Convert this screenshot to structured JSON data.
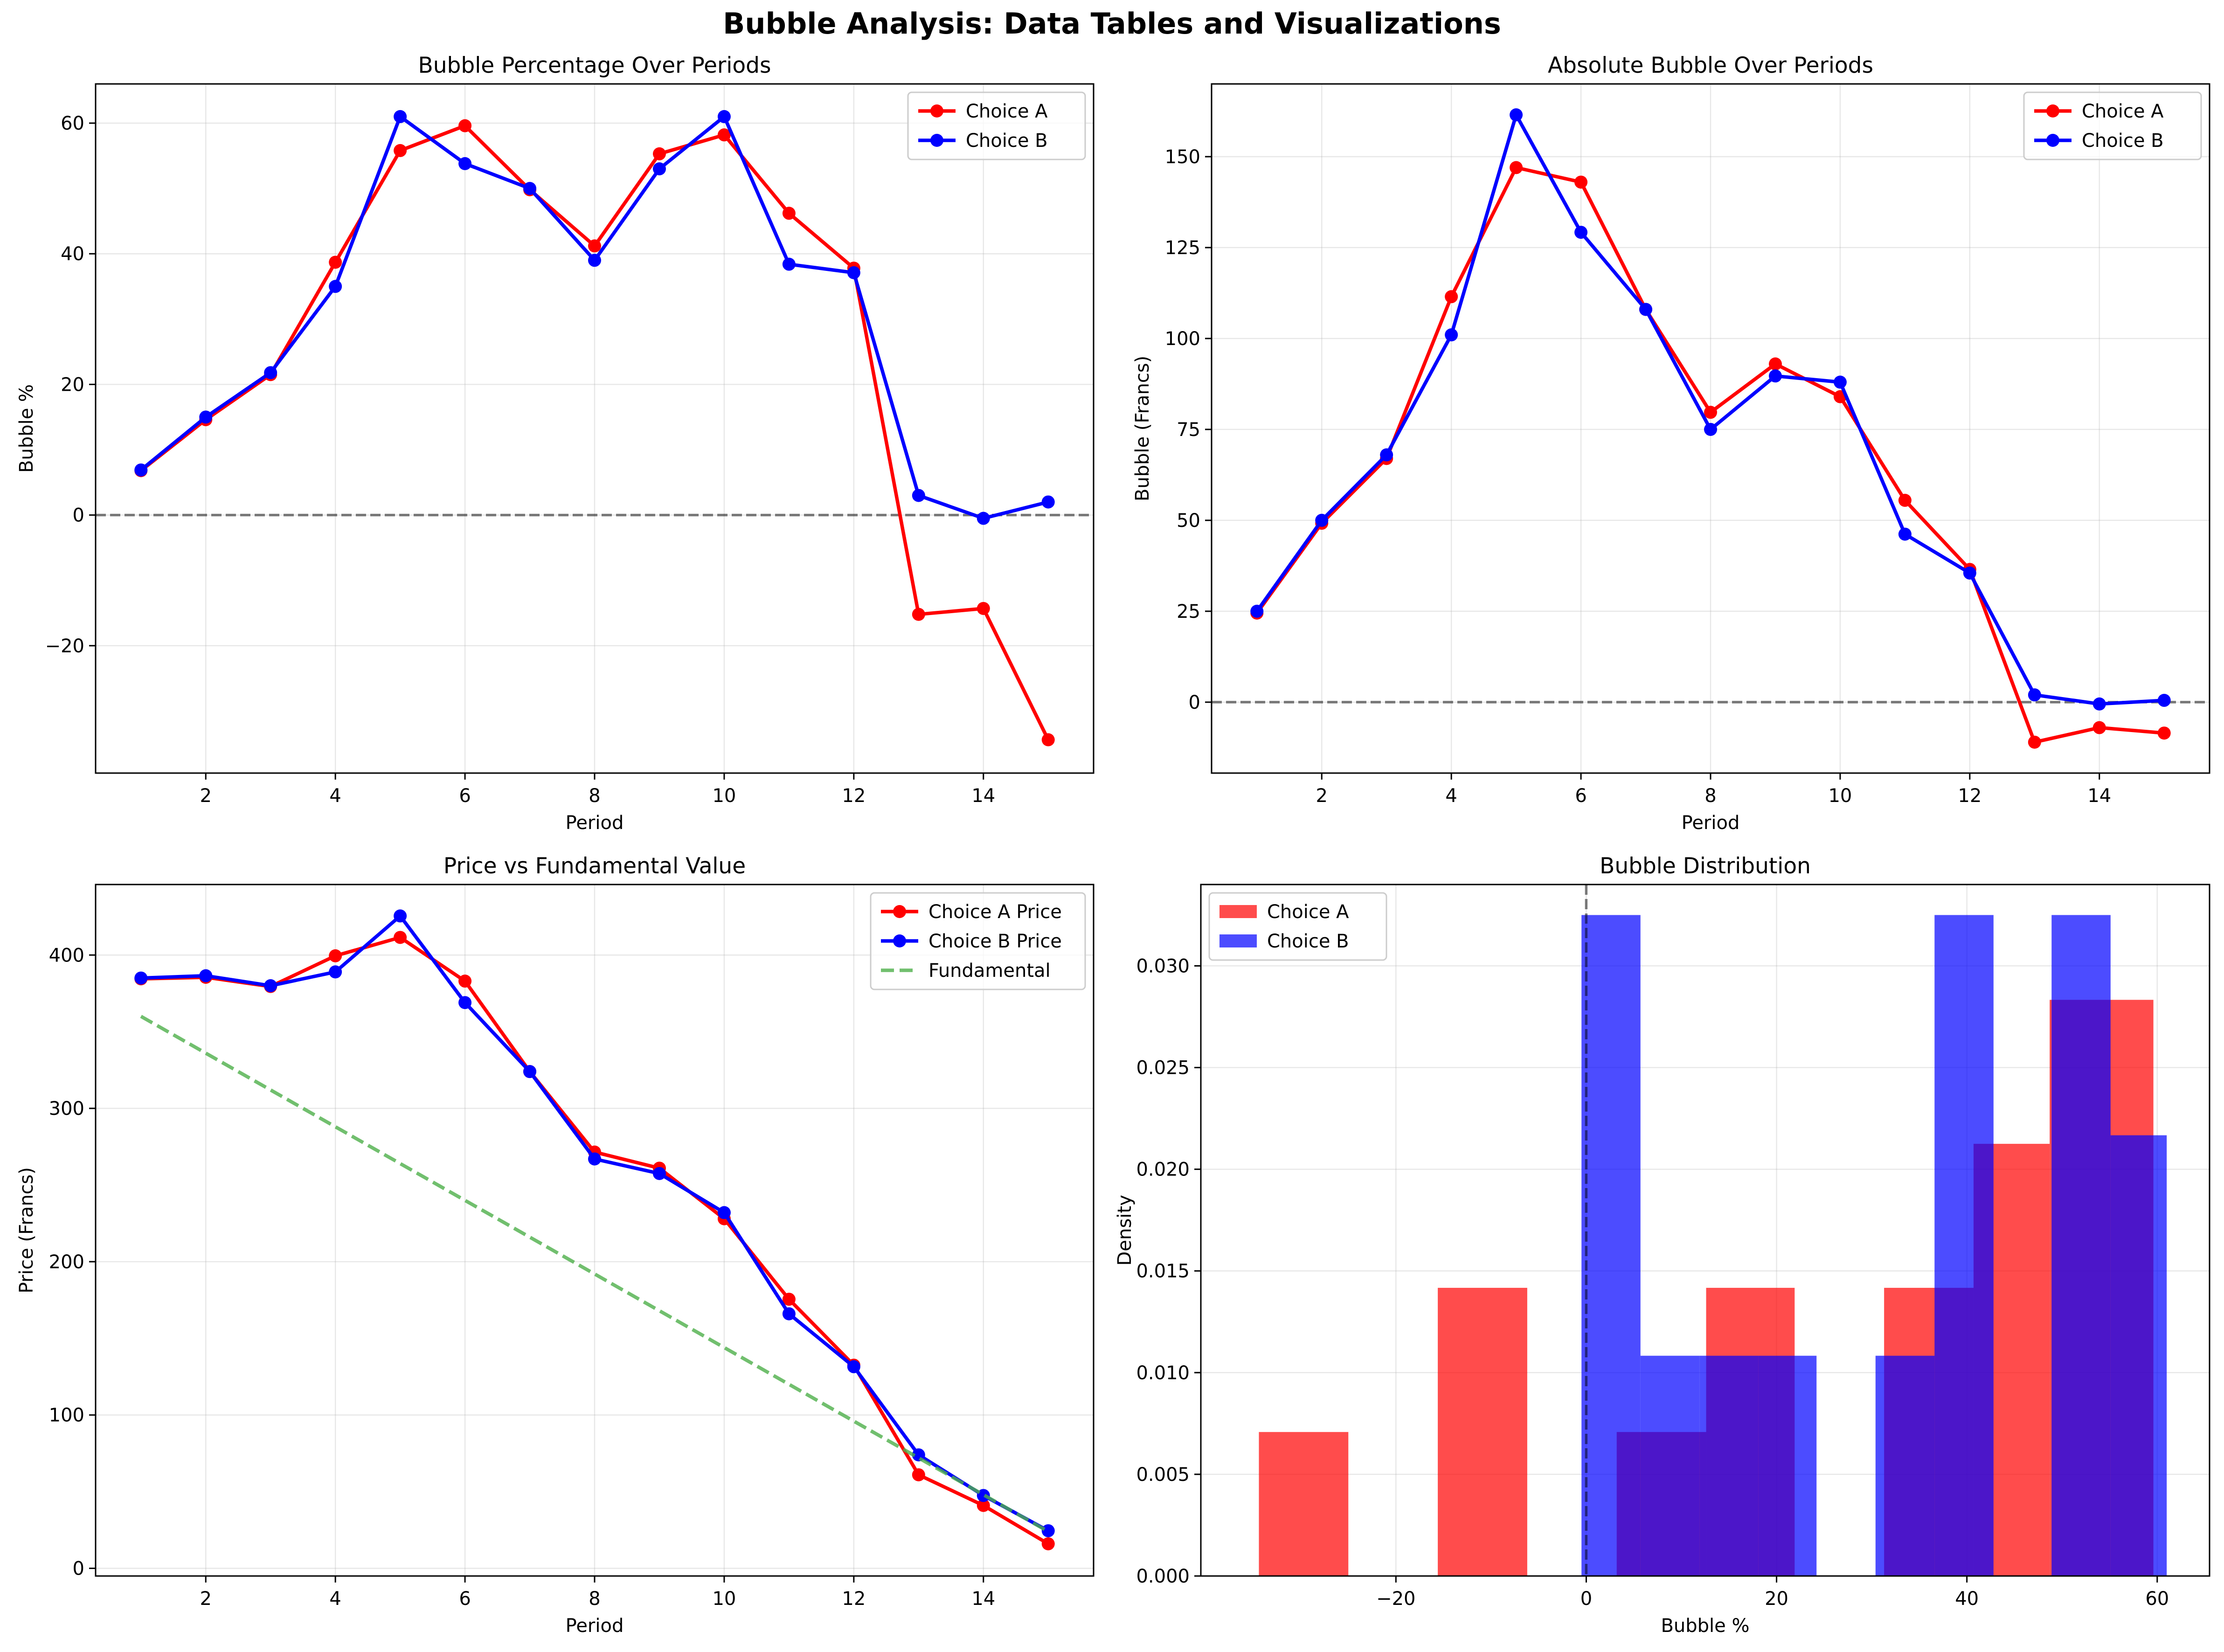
{
  "figure": {
    "title": "Bubble Analysis: Data Tables and Visualizations"
  },
  "chart_data": [
    {
      "type": "line",
      "title": "Bubble Percentage Over Periods",
      "xlabel": "Period",
      "ylabel": "Bubble %",
      "x": [
        1,
        2,
        3,
        4,
        5,
        6,
        7,
        8,
        9,
        10,
        11,
        12,
        13,
        14,
        15
      ],
      "xlim": [
        0.3,
        15.7
      ],
      "ylim": [
        -39.5,
        66
      ],
      "xticks": [
        2,
        4,
        6,
        8,
        10,
        12,
        14
      ],
      "yticks": [
        -20,
        0,
        20,
        40,
        60
      ],
      "hline": 0,
      "grid": true,
      "legend": "top-right",
      "series": [
        {
          "name": "Choice A",
          "color": "#ff0000",
          "style": "solid",
          "marker": true,
          "values": [
            6.8,
            14.6,
            21.5,
            38.7,
            55.8,
            59.6,
            49.8,
            41.2,
            55.3,
            58.2,
            46.2,
            37.8,
            -15.2,
            -14.3,
            -34.4
          ]
        },
        {
          "name": "Choice B",
          "color": "#0000ff",
          "style": "solid",
          "marker": true,
          "values": [
            6.9,
            15.0,
            21.8,
            35.0,
            61.0,
            53.8,
            50.0,
            39.0,
            53.0,
            61.0,
            38.4,
            37.1,
            3.0,
            -0.5,
            2.0
          ]
        }
      ]
    },
    {
      "type": "line",
      "title": "Absolute Bubble Over Periods",
      "xlabel": "Period",
      "ylabel": "Bubble (Francs)",
      "x": [
        1,
        2,
        3,
        4,
        5,
        6,
        7,
        8,
        9,
        10,
        11,
        12,
        13,
        14,
        15
      ],
      "xlim": [
        0.3,
        15.7
      ],
      "ylim": [
        -19.5,
        170
      ],
      "xticks": [
        2,
        4,
        6,
        8,
        10,
        12,
        14
      ],
      "yticks": [
        0,
        25,
        50,
        75,
        100,
        125,
        150
      ],
      "hline": 0,
      "grid": true,
      "legend": "top-right",
      "series": [
        {
          "name": "Choice A",
          "color": "#ff0000",
          "style": "solid",
          "marker": true,
          "values": [
            24.5,
            49.2,
            67.0,
            111.5,
            147.0,
            143.0,
            108.0,
            79.7,
            93.0,
            84.0,
            55.5,
            36.5,
            -11.0,
            -7.0,
            -8.5
          ]
        },
        {
          "name": "Choice B",
          "color": "#0000ff",
          "style": "solid",
          "marker": true,
          "values": [
            25.0,
            50.0,
            68.0,
            101.0,
            161.5,
            129.2,
            108.0,
            75.0,
            89.7,
            88.0,
            46.2,
            35.5,
            2.0,
            -0.5,
            0.5
          ]
        }
      ]
    },
    {
      "type": "line",
      "title": "Price vs Fundamental Value",
      "xlabel": "Period",
      "ylabel": "Price (Francs)",
      "x": [
        1,
        2,
        3,
        4,
        5,
        6,
        7,
        8,
        9,
        10,
        11,
        12,
        13,
        14,
        15
      ],
      "xlim": [
        0.3,
        15.7
      ],
      "ylim": [
        -5,
        446
      ],
      "xticks": [
        2,
        4,
        6,
        8,
        10,
        12,
        14
      ],
      "yticks": [
        0,
        100,
        200,
        300,
        400
      ],
      "grid": true,
      "legend": "top-right",
      "series": [
        {
          "name": "Choice A Price",
          "color": "#ff0000",
          "style": "solid",
          "marker": true,
          "values": [
            384.5,
            385.5,
            379.5,
            399.5,
            411.5,
            383.0,
            324.0,
            271.5,
            261.0,
            228.0,
            175.5,
            132.5,
            61.0,
            41.0,
            16.0
          ]
        },
        {
          "name": "Choice B Price",
          "color": "#0000ff",
          "style": "solid",
          "marker": true,
          "values": [
            385.0,
            386.5,
            380.0,
            389.0,
            425.5,
            369.0,
            324.0,
            267.0,
            257.5,
            232.0,
            166.0,
            131.5,
            74.0,
            47.5,
            24.5
          ]
        },
        {
          "name": "Fundamental",
          "color": "#4daf4a",
          "style": "dashed",
          "marker": false,
          "values": [
            360,
            336,
            312,
            288,
            264,
            240,
            216,
            192,
            168,
            144,
            120,
            96,
            72,
            48,
            24
          ]
        }
      ]
    },
    {
      "type": "histogram",
      "title": "Bubble Distribution",
      "xlabel": "Bubble %",
      "ylabel": "Density",
      "xlim": [
        -40.5,
        65.5
      ],
      "ylim": [
        0,
        0.034
      ],
      "xticks": [
        -20,
        0,
        20,
        40,
        60
      ],
      "yticks": [
        0.0,
        0.005,
        0.01,
        0.015,
        0.02,
        0.025,
        0.03
      ],
      "vline": 0,
      "grid": true,
      "legend": "top-left",
      "series": [
        {
          "name": "Choice A",
          "color": "#ff0000",
          "opacity": 0.7,
          "bins": [
            [
              -34.4,
              -25.0,
              0.00708
            ],
            [
              -25.0,
              -15.6,
              0
            ],
            [
              -15.6,
              -6.2,
              0.01417
            ],
            [
              -6.2,
              3.2,
              0
            ],
            [
              3.2,
              12.6,
              0.00708
            ],
            [
              12.6,
              21.9,
              0.01417
            ],
            [
              21.9,
              31.3,
              0
            ],
            [
              31.3,
              40.7,
              0.01417
            ],
            [
              40.7,
              48.7,
              0.02125
            ],
            [
              48.7,
              59.6,
              0.02833
            ]
          ]
        },
        {
          "name": "Choice B",
          "color": "#0000ff",
          "opacity": 0.7,
          "bins": [
            [
              -0.5,
              5.7,
              0.0325
            ],
            [
              5.7,
              11.9,
              0.01083
            ],
            [
              11.9,
              18.1,
              0.01083
            ],
            [
              18.1,
              24.2,
              0.01083
            ],
            [
              24.2,
              30.4,
              0
            ],
            [
              30.4,
              36.6,
              0.01083
            ],
            [
              36.6,
              42.8,
              0.0325
            ],
            [
              42.8,
              48.9,
              0
            ],
            [
              48.9,
              55.1,
              0.0325
            ],
            [
              55.1,
              61.0,
              0.02167
            ]
          ]
        }
      ]
    }
  ]
}
